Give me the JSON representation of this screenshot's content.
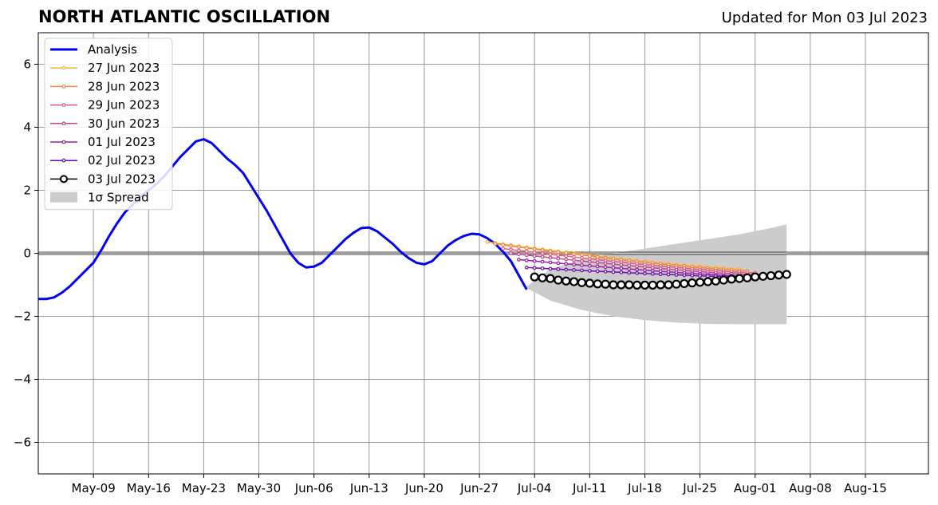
{
  "chart_data": {
    "type": "line",
    "title": "NORTH ATLANTIC OSCILLATION",
    "subtitle": "Updated for Mon 03 Jul 2023",
    "xlabel": "",
    "ylabel": "",
    "x_axis": {
      "type": "date",
      "range": [
        "2023-05-02",
        "2023-08-23"
      ],
      "ticks": [
        "2023-05-09",
        "2023-05-16",
        "2023-05-23",
        "2023-05-30",
        "2023-06-06",
        "2023-06-13",
        "2023-06-20",
        "2023-06-27",
        "2023-07-04",
        "2023-07-11",
        "2023-07-18",
        "2023-07-25",
        "2023-08-01",
        "2023-08-08",
        "2023-08-15"
      ],
      "tick_labels": [
        "May-09",
        "May-16",
        "May-23",
        "May-30",
        "Jun-06",
        "Jun-13",
        "Jun-20",
        "Jun-27",
        "Jul-04",
        "Jul-11",
        "Jul-18",
        "Jul-25",
        "Aug-01",
        "Aug-08",
        "Aug-15"
      ]
    },
    "y_axis": {
      "range": [
        -7,
        7
      ],
      "ticks": [
        -6,
        -4,
        -2,
        0,
        2,
        4,
        6
      ],
      "tick_labels": [
        "−6",
        "−4",
        "−2",
        "0",
        "2",
        "4",
        "6"
      ]
    },
    "grid": true,
    "legend_position": "top-left",
    "analysis": {
      "name": "Analysis",
      "color": "#0000ee",
      "points": [
        [
          "2023-05-02",
          -1.45
        ],
        [
          "2023-05-03",
          -1.45
        ],
        [
          "2023-05-04",
          -1.4
        ],
        [
          "2023-05-05",
          -1.25
        ],
        [
          "2023-05-06",
          -1.05
        ],
        [
          "2023-05-07",
          -0.8
        ],
        [
          "2023-05-08",
          -0.55
        ],
        [
          "2023-05-09",
          -0.3
        ],
        [
          "2023-05-10",
          0.1
        ],
        [
          "2023-05-11",
          0.55
        ],
        [
          "2023-05-12",
          0.95
        ],
        [
          "2023-05-13",
          1.3
        ],
        [
          "2023-05-14",
          1.55
        ],
        [
          "2023-05-15",
          1.8
        ],
        [
          "2023-05-16",
          2.0
        ],
        [
          "2023-05-17",
          2.2
        ],
        [
          "2023-05-18",
          2.45
        ],
        [
          "2023-05-19",
          2.75
        ],
        [
          "2023-05-20",
          3.05
        ],
        [
          "2023-05-21",
          3.3
        ],
        [
          "2023-05-22",
          3.55
        ],
        [
          "2023-05-23",
          3.62
        ],
        [
          "2023-05-24",
          3.5
        ],
        [
          "2023-05-25",
          3.25
        ],
        [
          "2023-05-26",
          3.0
        ],
        [
          "2023-05-27",
          2.8
        ],
        [
          "2023-05-28",
          2.55
        ],
        [
          "2023-05-29",
          2.15
        ],
        [
          "2023-05-30",
          1.75
        ],
        [
          "2023-05-31",
          1.35
        ],
        [
          "2023-06-01",
          0.9
        ],
        [
          "2023-06-02",
          0.45
        ],
        [
          "2023-06-03",
          0.0
        ],
        [
          "2023-06-04",
          -0.3
        ],
        [
          "2023-06-05",
          -0.45
        ],
        [
          "2023-06-06",
          -0.42
        ],
        [
          "2023-06-07",
          -0.3
        ],
        [
          "2023-06-08",
          -0.05
        ],
        [
          "2023-06-09",
          0.2
        ],
        [
          "2023-06-10",
          0.45
        ],
        [
          "2023-06-11",
          0.65
        ],
        [
          "2023-06-12",
          0.8
        ],
        [
          "2023-06-13",
          0.82
        ],
        [
          "2023-06-14",
          0.7
        ],
        [
          "2023-06-15",
          0.5
        ],
        [
          "2023-06-16",
          0.3
        ],
        [
          "2023-06-17",
          0.05
        ],
        [
          "2023-06-18",
          -0.15
        ],
        [
          "2023-06-19",
          -0.3
        ],
        [
          "2023-06-20",
          -0.35
        ],
        [
          "2023-06-21",
          -0.25
        ],
        [
          "2023-06-22",
          0.0
        ],
        [
          "2023-06-23",
          0.25
        ],
        [
          "2023-06-24",
          0.42
        ],
        [
          "2023-06-25",
          0.55
        ],
        [
          "2023-06-26",
          0.62
        ],
        [
          "2023-06-27",
          0.6
        ],
        [
          "2023-06-28",
          0.48
        ],
        [
          "2023-06-29",
          0.3
        ],
        [
          "2023-06-30",
          0.05
        ],
        [
          "2023-07-01",
          -0.25
        ],
        [
          "2023-07-02",
          -0.7
        ],
        [
          "2023-07-03",
          -1.15
        ]
      ]
    },
    "spread": {
      "name": "1σ Spread",
      "color": "#cccccc",
      "x": [
        "2023-07-03",
        "2023-07-06",
        "2023-07-10",
        "2023-07-14",
        "2023-07-18",
        "2023-07-22",
        "2023-07-26",
        "2023-07-30",
        "2023-08-03",
        "2023-08-05"
      ],
      "upper": [
        -1.05,
        -0.5,
        -0.2,
        0.0,
        0.15,
        0.3,
        0.45,
        0.6,
        0.8,
        0.92
      ],
      "lower": [
        -1.1,
        -1.5,
        -1.8,
        -2.0,
        -2.12,
        -2.2,
        -2.24,
        -2.25,
        -2.25,
        -2.25
      ]
    },
    "forecasts": [
      {
        "name": "27 Jun 2023",
        "color": "#f8b33c",
        "start": "2023-06-28",
        "end": "2023-07-30",
        "y0": 0.36,
        "y1": -0.5
      },
      {
        "name": "28 Jun 2023",
        "color": "#ee8a4a",
        "start": "2023-06-29",
        "end": "2023-07-31",
        "y0": 0.3,
        "y1": -0.55
      },
      {
        "name": "29 Jun 2023",
        "color": "#e0607a",
        "start": "2023-06-30",
        "end": "2023-08-01",
        "y0": 0.15,
        "y1": -0.62
      },
      {
        "name": "30 Jun 2023",
        "color": "#c2478f",
        "start": "2023-07-01",
        "end": "2023-08-01",
        "y0": 0.0,
        "y1": -0.68
      },
      {
        "name": "01 Jul 2023",
        "color": "#9a1fa6",
        "start": "2023-07-02",
        "end": "2023-08-02",
        "y0": -0.2,
        "y1": -0.75
      },
      {
        "name": "02 Jul 2023",
        "color": "#6a0cae",
        "start": "2023-07-03",
        "end": "2023-08-03",
        "y0": -0.45,
        "y1": -0.78
      }
    ],
    "latest": {
      "name": "03 Jul 2023",
      "color": "#000000",
      "start": "2023-07-04",
      "values": [
        -0.75,
        -0.78,
        -0.8,
        -0.85,
        -0.88,
        -0.9,
        -0.93,
        -0.95,
        -0.97,
        -0.98,
        -1.0,
        -1.0,
        -1.0,
        -1.01,
        -1.01,
        -1.01,
        -1.0,
        -1.0,
        -0.98,
        -0.96,
        -0.94,
        -0.92,
        -0.9,
        -0.88,
        -0.85,
        -0.82,
        -0.8,
        -0.78,
        -0.75,
        -0.73,
        -0.71,
        -0.69,
        -0.67
      ]
    },
    "zero_line": 0
  }
}
